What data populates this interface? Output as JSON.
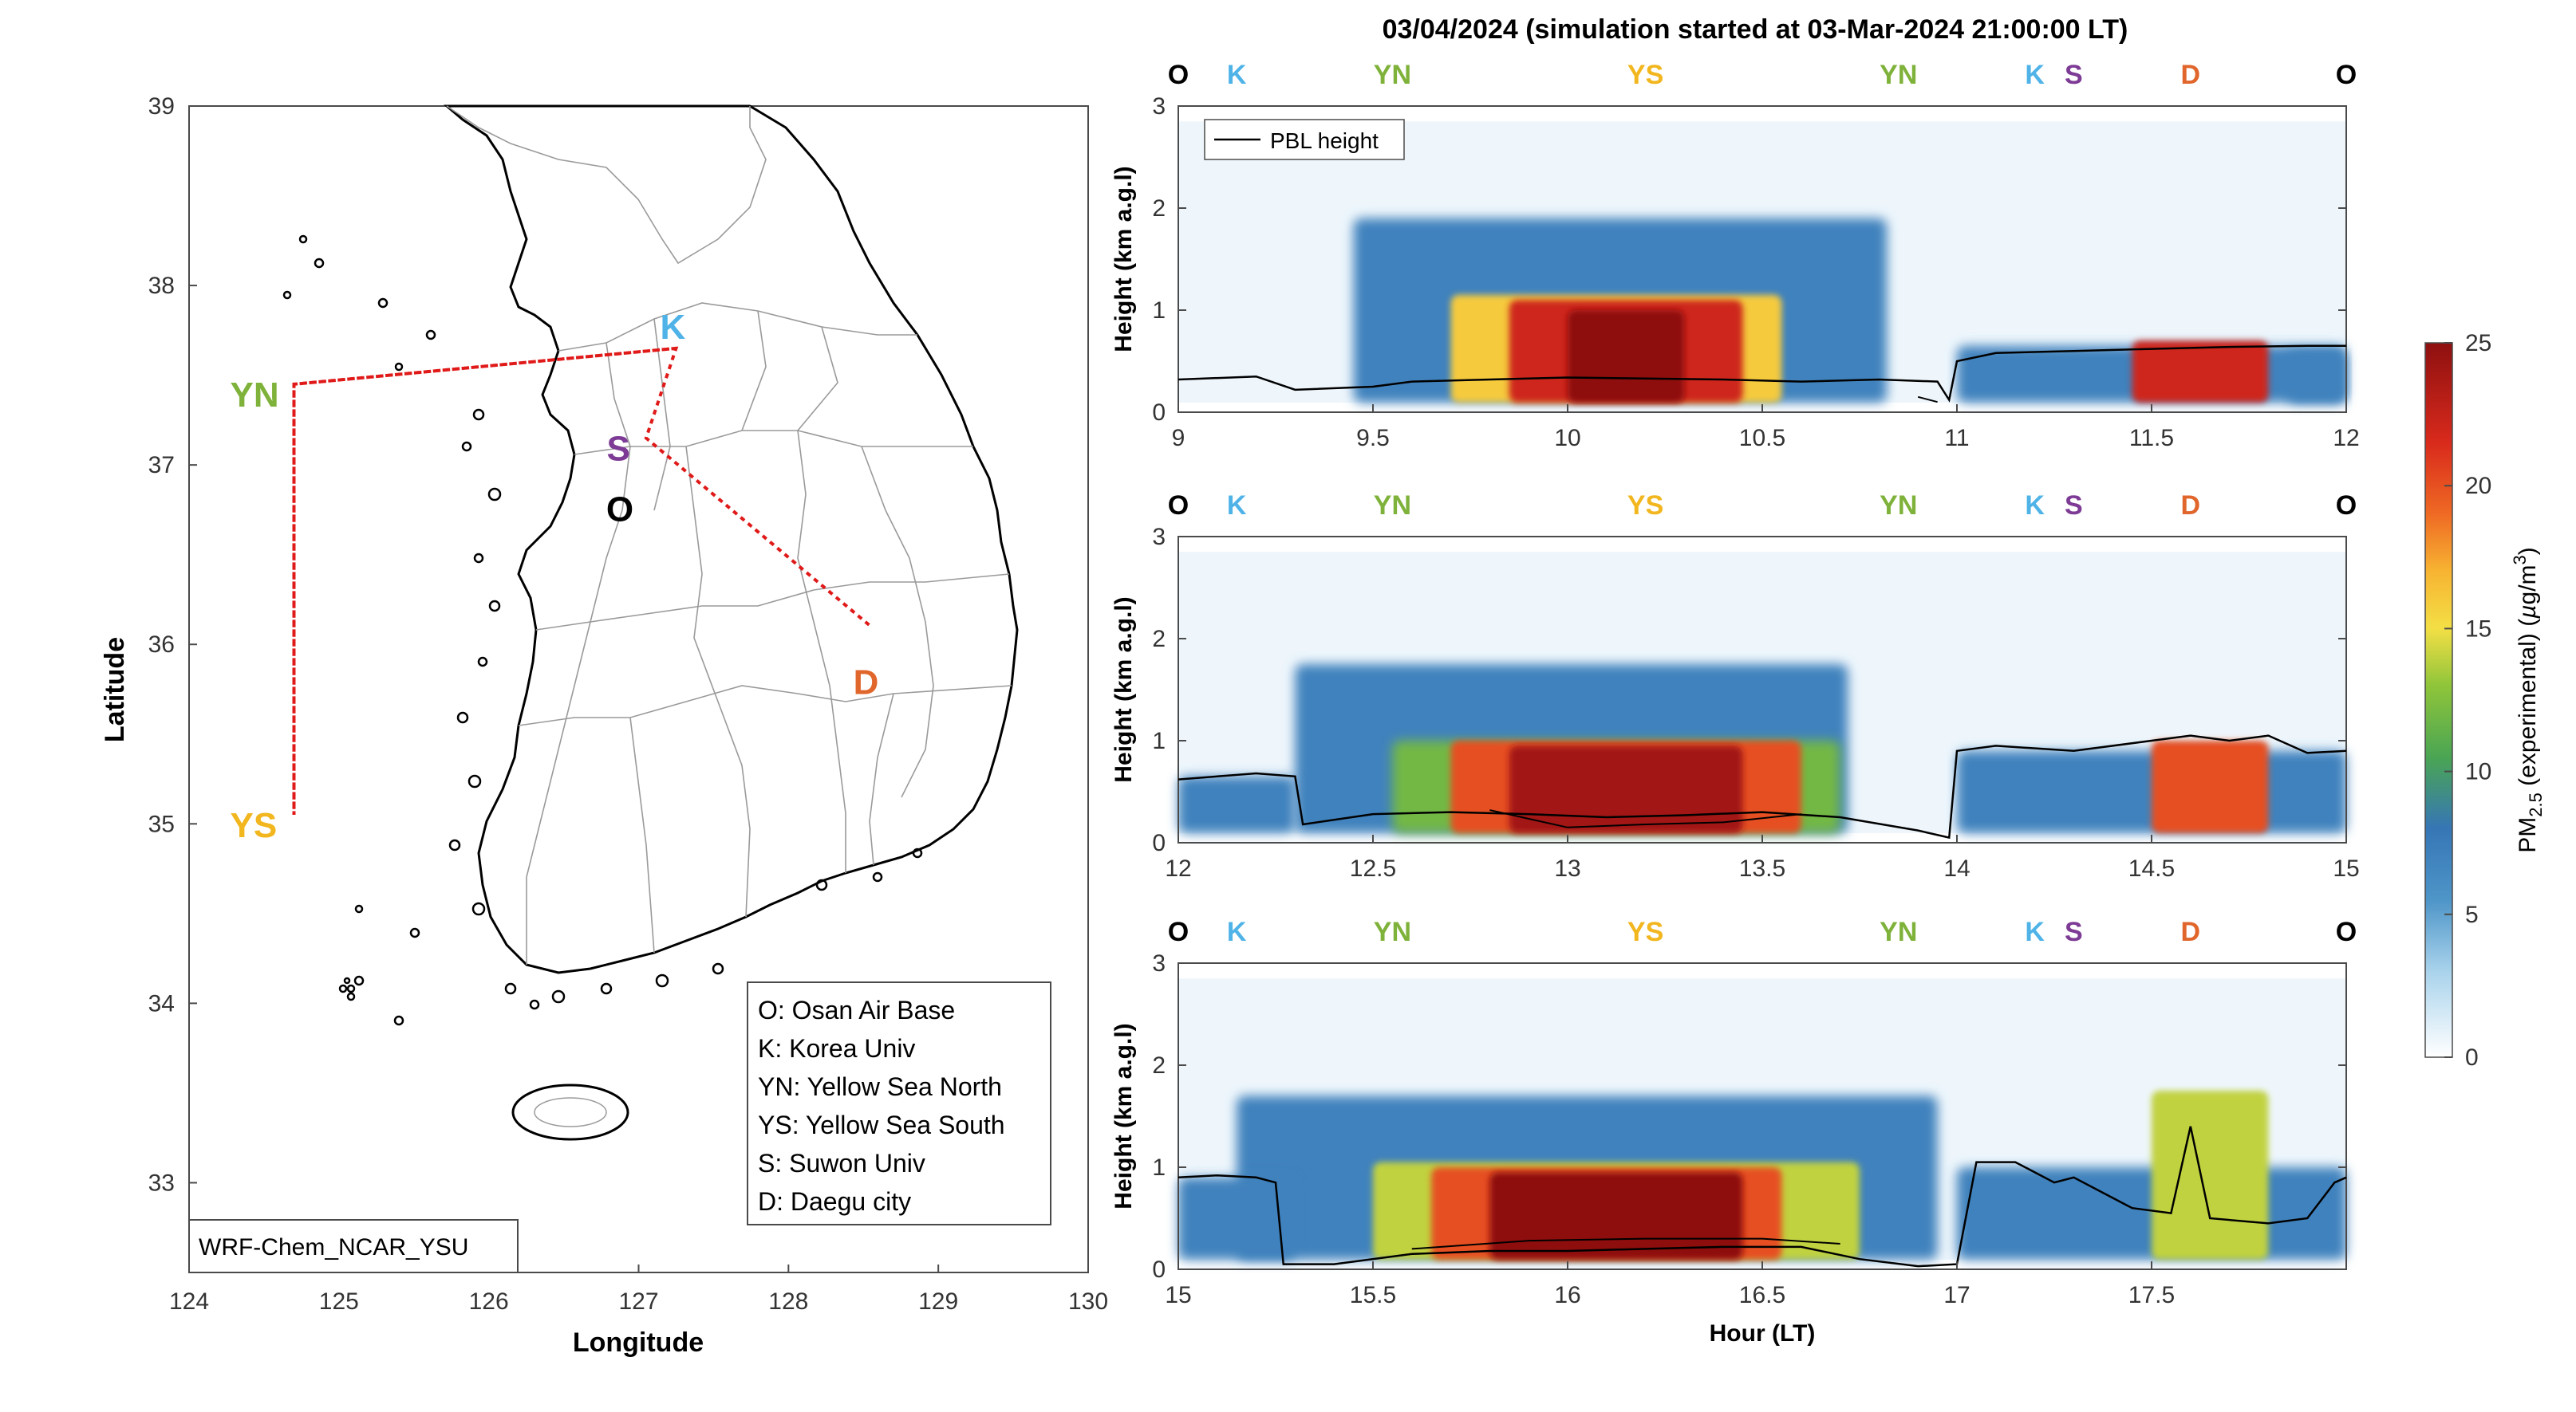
{
  "figure": {
    "title": "03/04/2024 (simulation started at 03-Mar-2024 21:00:00 LT)"
  },
  "map": {
    "xlabel": "Longitude",
    "ylabel": "Latitude",
    "xticks": [
      "124",
      "125",
      "126",
      "127",
      "128",
      "129",
      "130"
    ],
    "yticks": [
      "33",
      "34",
      "35",
      "36",
      "37",
      "38",
      "39"
    ],
    "xlim": [
      124,
      130
    ],
    "ylim": [
      32.5,
      39
    ],
    "model_label": "WRF-Chem_NCAR_YSU",
    "legend": [
      "O: Osan Air Base",
      "K: Korea Univ",
      "YN: Yellow Sea North",
      "YS: Yellow Sea South",
      "S: Suwon Univ",
      "D: Daegu city"
    ],
    "sites": [
      {
        "code": "YN",
        "lon": 124.7,
        "lat": 37.45,
        "color": "#7fb23a"
      },
      {
        "code": "YS",
        "lon": 124.7,
        "lat": 35.05,
        "color": "#f2b61e"
      },
      {
        "code": "K",
        "lon": 127.25,
        "lat": 37.65,
        "color": "#4fb3e8"
      },
      {
        "code": "S",
        "lon": 127.0,
        "lat": 37.3,
        "color": "#7d3b96"
      },
      {
        "code": "O",
        "lon": 127.05,
        "lat": 37.1,
        "color": "#000000"
      },
      {
        "code": "D",
        "lon": 128.55,
        "lat": 35.9,
        "color": "#e0662c"
      }
    ],
    "route_lonlat": [
      [
        127.25,
        37.65
      ],
      [
        124.7,
        37.45
      ],
      [
        124.7,
        35.05
      ],
      [
        124.7,
        37.45
      ],
      [
        127.25,
        37.65
      ],
      [
        127.05,
        37.15
      ],
      [
        128.55,
        36.1
      ],
      [
        127.05,
        37.15
      ],
      [
        127.25,
        37.65
      ]
    ]
  },
  "colorbar": {
    "label": "PM2.5 (experimental) (µg/m3)",
    "ticks": [
      "0",
      "5",
      "10",
      "15",
      "20",
      "25"
    ],
    "range": [
      0,
      25
    ]
  },
  "legend_pbl": "PBL height",
  "chart_data": [
    {
      "type": "heatmap",
      "x_range": [
        9,
        12
      ],
      "xticks": [
        "9",
        "9.5",
        "10",
        "10.5",
        "11",
        "11.5",
        "12"
      ],
      "ylabel": "Height (km a.g.l)",
      "ylim": [
        0,
        3
      ],
      "yticks": [
        "0",
        "1",
        "2",
        "3"
      ],
      "top_sites": [
        {
          "label": "O",
          "x": 9.0,
          "color": "#000000"
        },
        {
          "label": "K",
          "x": 9.15,
          "color": "#4fb3e8"
        },
        {
          "label": "YN",
          "x": 9.55,
          "color": "#7fb23a"
        },
        {
          "label": "YS",
          "x": 10.2,
          "color": "#f2b61e"
        },
        {
          "label": "YN",
          "x": 10.85,
          "color": "#7fb23a"
        },
        {
          "label": "K",
          "x": 11.2,
          "color": "#4fb3e8"
        },
        {
          "label": "S",
          "x": 11.3,
          "color": "#7d3b96"
        },
        {
          "label": "D",
          "x": 11.6,
          "color": "#e0662c"
        },
        {
          "label": "O",
          "x": 12.0,
          "color": "#000000"
        }
      ],
      "pbl_height_km": [
        [
          9.0,
          0.32
        ],
        [
          9.2,
          0.35
        ],
        [
          9.3,
          0.22
        ],
        [
          9.5,
          0.25
        ],
        [
          9.6,
          0.3
        ],
        [
          9.8,
          0.32
        ],
        [
          10.0,
          0.34
        ],
        [
          10.2,
          0.33
        ],
        [
          10.4,
          0.32
        ],
        [
          10.6,
          0.3
        ],
        [
          10.8,
          0.32
        ],
        [
          10.95,
          0.3
        ],
        [
          10.98,
          0.12
        ],
        [
          11.0,
          0.5
        ],
        [
          11.1,
          0.58
        ],
        [
          11.3,
          0.6
        ],
        [
          11.5,
          0.62
        ],
        [
          11.7,
          0.64
        ],
        [
          11.9,
          0.65
        ],
        [
          12.0,
          0.65
        ]
      ],
      "pbl_lower_km": [
        [
          10.9,
          0.15
        ],
        [
          10.95,
          0.1
        ]
      ],
      "plumes": [
        {
          "x": [
            9.45,
            10.82
          ],
          "top_km": 1.9,
          "peak": 7
        },
        {
          "x": [
            9.7,
            10.55
          ],
          "top_km": 1.15,
          "peak": 16
        },
        {
          "x": [
            9.85,
            10.45
          ],
          "top_km": 1.1,
          "peak": 22
        },
        {
          "x": [
            10.0,
            10.3
          ],
          "top_km": 1.0,
          "peak": 25
        },
        {
          "x": [
            11.0,
            12.0
          ],
          "top_km": 0.65,
          "peak": 7
        },
        {
          "x": [
            11.45,
            11.8
          ],
          "top_km": 0.7,
          "peak": 22
        },
        {
          "x": [
            11.85,
            12.0
          ],
          "top_km": 0.6,
          "peak": 7
        }
      ]
    },
    {
      "type": "heatmap",
      "x_range": [
        12,
        15
      ],
      "xticks": [
        "12",
        "12.5",
        "13",
        "13.5",
        "14",
        "14.5",
        "15"
      ],
      "ylabel": "Height (km a.g.l)",
      "ylim": [
        0,
        3
      ],
      "yticks": [
        "0",
        "1",
        "2",
        "3"
      ],
      "top_sites": [
        {
          "label": "O",
          "x": 12.0,
          "color": "#000000"
        },
        {
          "label": "K",
          "x": 12.15,
          "color": "#4fb3e8"
        },
        {
          "label": "YN",
          "x": 12.55,
          "color": "#7fb23a"
        },
        {
          "label": "YS",
          "x": 13.2,
          "color": "#f2b61e"
        },
        {
          "label": "YN",
          "x": 13.85,
          "color": "#7fb23a"
        },
        {
          "label": "K",
          "x": 14.2,
          "color": "#4fb3e8"
        },
        {
          "label": "S",
          "x": 14.3,
          "color": "#7d3b96"
        },
        {
          "label": "D",
          "x": 14.6,
          "color": "#e0662c"
        },
        {
          "label": "O",
          "x": 15.0,
          "color": "#000000"
        }
      ],
      "pbl_height_km": [
        [
          12.0,
          0.62
        ],
        [
          12.1,
          0.65
        ],
        [
          12.2,
          0.68
        ],
        [
          12.3,
          0.65
        ],
        [
          12.32,
          0.18
        ],
        [
          12.5,
          0.28
        ],
        [
          12.7,
          0.3
        ],
        [
          12.9,
          0.28
        ],
        [
          13.1,
          0.25
        ],
        [
          13.3,
          0.27
        ],
        [
          13.5,
          0.3
        ],
        [
          13.7,
          0.25
        ],
        [
          13.9,
          0.12
        ],
        [
          13.98,
          0.05
        ],
        [
          14.0,
          0.9
        ],
        [
          14.1,
          0.95
        ],
        [
          14.3,
          0.9
        ],
        [
          14.5,
          1.0
        ],
        [
          14.6,
          1.05
        ],
        [
          14.7,
          1.0
        ],
        [
          14.8,
          1.05
        ],
        [
          14.9,
          0.88
        ],
        [
          15.0,
          0.9
        ]
      ],
      "pbl_lower_km": [
        [
          12.8,
          0.32
        ],
        [
          13.0,
          0.15
        ],
        [
          13.2,
          0.18
        ],
        [
          13.4,
          0.2
        ],
        [
          13.6,
          0.28
        ]
      ],
      "plumes": [
        {
          "x": [
            12.3,
            13.72
          ],
          "top_km": 1.75,
          "peak": 7
        },
        {
          "x": [
            12.55,
            13.7
          ],
          "top_km": 1.0,
          "peak": 12
        },
        {
          "x": [
            12.7,
            13.6
          ],
          "top_km": 1.0,
          "peak": 20
        },
        {
          "x": [
            12.85,
            13.45
          ],
          "top_km": 0.95,
          "peak": 24
        },
        {
          "x": [
            12.0,
            12.3
          ],
          "top_km": 0.65,
          "peak": 7
        },
        {
          "x": [
            14.0,
            15.0
          ],
          "top_km": 0.9,
          "peak": 7
        },
        {
          "x": [
            14.5,
            14.8
          ],
          "top_km": 1.0,
          "peak": 20
        }
      ]
    },
    {
      "type": "heatmap",
      "x_range": [
        15,
        18
      ],
      "xticks": [
        "15",
        "15.5",
        "16",
        "16.5",
        "17",
        "17.5"
      ],
      "xlabel": "Hour (LT)",
      "ylabel": "Height (km a.g.l)",
      "ylim": [
        0,
        3
      ],
      "yticks": [
        "0",
        "1",
        "2",
        "3"
      ],
      "top_sites": [
        {
          "label": "O",
          "x": 15.0,
          "color": "#000000"
        },
        {
          "label": "K",
          "x": 15.15,
          "color": "#4fb3e8"
        },
        {
          "label": "YN",
          "x": 15.55,
          "color": "#7fb23a"
        },
        {
          "label": "YS",
          "x": 16.2,
          "color": "#f2b61e"
        },
        {
          "label": "YN",
          "x": 16.85,
          "color": "#7fb23a"
        },
        {
          "label": "K",
          "x": 17.2,
          "color": "#4fb3e8"
        },
        {
          "label": "S",
          "x": 17.3,
          "color": "#7d3b96"
        },
        {
          "label": "D",
          "x": 17.6,
          "color": "#e0662c"
        },
        {
          "label": "O",
          "x": 18.0,
          "color": "#000000"
        }
      ],
      "pbl_height_km": [
        [
          15.0,
          0.9
        ],
        [
          15.1,
          0.92
        ],
        [
          15.2,
          0.9
        ],
        [
          15.25,
          0.85
        ],
        [
          15.27,
          0.05
        ],
        [
          15.4,
          0.05
        ],
        [
          15.6,
          0.15
        ],
        [
          15.8,
          0.18
        ],
        [
          16.0,
          0.18
        ],
        [
          16.2,
          0.2
        ],
        [
          16.4,
          0.22
        ],
        [
          16.6,
          0.22
        ],
        [
          16.75,
          0.1
        ],
        [
          16.9,
          0.03
        ],
        [
          17.0,
          0.05
        ],
        [
          17.05,
          1.05
        ],
        [
          17.15,
          1.05
        ],
        [
          17.25,
          0.85
        ],
        [
          17.3,
          0.9
        ],
        [
          17.45,
          0.6
        ],
        [
          17.55,
          0.55
        ],
        [
          17.6,
          1.4
        ],
        [
          17.65,
          0.5
        ],
        [
          17.8,
          0.45
        ],
        [
          17.9,
          0.5
        ],
        [
          17.97,
          0.85
        ],
        [
          18.0,
          0.9
        ]
      ],
      "pbl_lower_km": [
        [
          15.6,
          0.2
        ],
        [
          15.9,
          0.28
        ],
        [
          16.2,
          0.3
        ],
        [
          16.5,
          0.3
        ],
        [
          16.7,
          0.25
        ]
      ],
      "plumes": [
        {
          "x": [
            15.15,
            16.95
          ],
          "top_km": 1.7,
          "peak": 7
        },
        {
          "x": [
            15.5,
            16.75
          ],
          "top_km": 1.05,
          "peak": 14
        },
        {
          "x": [
            15.65,
            16.55
          ],
          "top_km": 1.0,
          "peak": 20
        },
        {
          "x": [
            15.8,
            16.45
          ],
          "top_km": 0.95,
          "peak": 25
        },
        {
          "x": [
            15.0,
            15.3
          ],
          "top_km": 0.9,
          "peak": 7
        },
        {
          "x": [
            17.0,
            18.0
          ],
          "top_km": 1.0,
          "peak": 7
        },
        {
          "x": [
            17.5,
            17.8
          ],
          "top_km": 1.75,
          "peak": 14
        }
      ]
    }
  ]
}
